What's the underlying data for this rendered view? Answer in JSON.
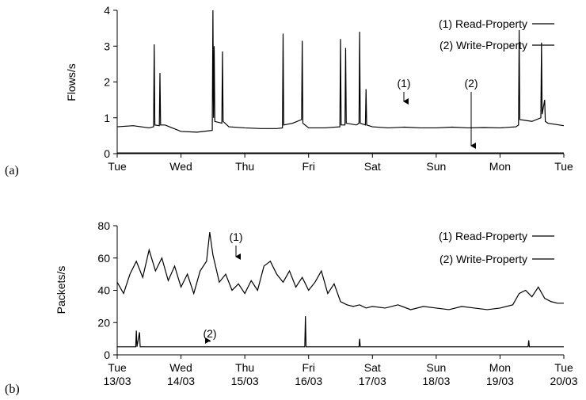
{
  "chart_data": [
    {
      "type": "line",
      "panel_label": "(a)",
      "y_label": "Flows/s",
      "legend": "upper right",
      "xlim": [
        0,
        7
      ],
      "ylim": [
        0,
        4
      ],
      "yticks": [
        0,
        1,
        2,
        3,
        4
      ],
      "xticks": [
        {
          "value": 0,
          "label": "Tue"
        },
        {
          "value": 1,
          "label": "Wed"
        },
        {
          "value": 2,
          "label": "Thu"
        },
        {
          "value": 3,
          "label": "Fri"
        },
        {
          "value": 4,
          "label": "Sat"
        },
        {
          "value": 5,
          "label": "Sun"
        },
        {
          "value": 6,
          "label": "Mon"
        },
        {
          "value": 7,
          "label": "Tue"
        }
      ],
      "annotations": [
        {
          "text": "(1)"
        },
        {
          "text": "(2)"
        }
      ],
      "series": [
        {
          "name": "(1) Read-Property",
          "color": "#000000",
          "x": [
            0,
            0.25,
            0.5,
            0.57,
            0.58,
            0.59,
            0.66,
            0.67,
            0.68,
            0.75,
            1.0,
            1.25,
            1.49,
            1.5,
            1.51,
            1.52,
            1.53,
            1.64,
            1.65,
            1.66,
            1.75,
            2.0,
            2.25,
            2.5,
            2.59,
            2.6,
            2.61,
            2.75,
            2.89,
            2.9,
            2.91,
            3.0,
            3.25,
            3.49,
            3.5,
            3.51,
            3.57,
            3.58,
            3.59,
            3.75,
            3.79,
            3.8,
            3.81,
            3.89,
            3.9,
            3.91,
            4.0,
            4.25,
            4.5,
            4.75,
            5.0,
            5.25,
            5.5,
            5.75,
            6.0,
            6.25,
            6.29,
            6.3,
            6.31,
            6.5,
            6.64,
            6.65,
            6.66,
            6.7,
            6.71,
            6.75,
            7.0
          ],
          "values": [
            0.75,
            0.78,
            0.72,
            0.75,
            3.05,
            0.8,
            0.78,
            2.25,
            0.8,
            0.8,
            0.62,
            0.6,
            0.65,
            4.0,
            1.0,
            3.0,
            0.9,
            0.85,
            2.85,
            0.9,
            0.75,
            0.72,
            0.7,
            0.7,
            0.72,
            3.35,
            0.8,
            0.85,
            0.95,
            3.15,
            0.85,
            0.72,
            0.72,
            0.75,
            3.2,
            0.8,
            0.8,
            2.95,
            0.85,
            0.8,
            0.85,
            3.4,
            0.85,
            0.8,
            1.8,
            0.8,
            0.75,
            0.72,
            0.74,
            0.72,
            0.72,
            0.74,
            0.72,
            0.73,
            0.72,
            0.75,
            0.8,
            3.45,
            0.95,
            0.9,
            1.0,
            3.1,
            1.1,
            1.5,
            0.9,
            0.85,
            0.78
          ]
        },
        {
          "name": "(2) Write-Property",
          "color": "#000000",
          "x": [
            0,
            7
          ],
          "values": [
            0.02,
            0.02
          ]
        }
      ]
    },
    {
      "type": "line",
      "panel_label": "(b)",
      "y_label": "Packets/s",
      "legend": "upper right",
      "xlim": [
        0,
        7
      ],
      "ylim": [
        0,
        80
      ],
      "yticks": [
        0,
        20,
        40,
        60,
        80
      ],
      "xticks": [
        {
          "value": 0,
          "label": "Tue 13/03"
        },
        {
          "value": 1,
          "label": "Wed 14/03"
        },
        {
          "value": 2,
          "label": "Thu 15/03"
        },
        {
          "value": 3,
          "label": "Fri 16/03"
        },
        {
          "value": 4,
          "label": "Sat 17/03"
        },
        {
          "value": 5,
          "label": "Sun 18/03"
        },
        {
          "value": 6,
          "label": "Mon 19/03"
        },
        {
          "value": 7,
          "label": "Tue 20/03"
        }
      ],
      "annotations": [
        {
          "text": "(1)"
        },
        {
          "text": "(2)"
        }
      ],
      "series": [
        {
          "name": "(1) Read-Property",
          "color": "#000000",
          "x": [
            0,
            0.1,
            0.2,
            0.3,
            0.4,
            0.5,
            0.6,
            0.7,
            0.8,
            0.9,
            1.0,
            1.1,
            1.2,
            1.3,
            1.4,
            1.45,
            1.5,
            1.6,
            1.7,
            1.8,
            1.9,
            2.0,
            2.1,
            2.2,
            2.3,
            2.4,
            2.5,
            2.6,
            2.7,
            2.8,
            2.9,
            3.0,
            3.1,
            3.2,
            3.3,
            3.4,
            3.5,
            3.6,
            3.7,
            3.8,
            3.9,
            4.0,
            4.2,
            4.4,
            4.6,
            4.8,
            5.0,
            5.2,
            5.4,
            5.6,
            5.8,
            6.0,
            6.2,
            6.3,
            6.4,
            6.5,
            6.6,
            6.7,
            6.8,
            6.9,
            7.0
          ],
          "values": [
            45,
            38,
            50,
            58,
            48,
            65,
            52,
            60,
            46,
            55,
            42,
            50,
            38,
            52,
            58,
            76,
            62,
            45,
            50,
            40,
            44,
            38,
            46,
            40,
            55,
            58,
            50,
            45,
            52,
            42,
            48,
            40,
            45,
            52,
            38,
            44,
            33,
            31,
            30,
            31,
            29,
            30,
            29,
            31,
            28,
            30,
            29,
            28,
            30,
            29,
            28,
            29,
            31,
            38,
            40,
            36,
            42,
            35,
            33,
            32,
            32
          ]
        },
        {
          "name": "(2) Write-Property",
          "color": "#000000",
          "x": [
            0,
            0.25,
            0.29,
            0.3,
            0.31,
            0.35,
            0.36,
            1,
            2,
            2.94,
            2.95,
            2.96,
            3,
            3.79,
            3.8,
            3.81,
            5,
            6.44,
            6.45,
            6.46,
            7
          ],
          "values": [
            5,
            5,
            5,
            15,
            5,
            14,
            5,
            5,
            5,
            5,
            24,
            5,
            5,
            5,
            10,
            5,
            5,
            5,
            9,
            5,
            5
          ]
        }
      ]
    }
  ]
}
